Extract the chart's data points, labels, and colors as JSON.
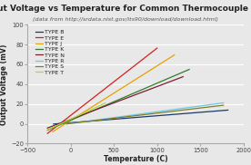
{
  "title": "Output Voltage vs Temperature for Common Thermocouple Types",
  "subtitle": "(data from http://srdata.nist.gov/its90/download/download.html)",
  "xlabel": "Temperature (C)",
  "ylabel": "Output Voltage (mV)",
  "xlim": [
    -500,
    2000
  ],
  "ylim": [
    -20,
    100
  ],
  "xticks": [
    -500,
    0,
    500,
    1000,
    1500,
    2000
  ],
  "yticks": [
    -20,
    0,
    20,
    40,
    60,
    80,
    100
  ],
  "series": [
    {
      "label": "TYPE B",
      "color": "#1a3a6e",
      "start_temp": -200,
      "end_temp": 1820,
      "start_mv": -0.3,
      "end_mv": 13.8
    },
    {
      "label": "TYPE E",
      "color": "#d42020",
      "start_temp": -270,
      "end_temp": 1000,
      "start_mv": -9.8,
      "end_mv": 76.4
    },
    {
      "label": "TYPE J",
      "color": "#e8a000",
      "start_temp": -210,
      "end_temp": 1200,
      "start_mv": -8.1,
      "end_mv": 69.5
    },
    {
      "label": "TYPE K",
      "color": "#2e7d2e",
      "start_temp": -270,
      "end_temp": 1372,
      "start_mv": -6.5,
      "end_mv": 54.9
    },
    {
      "label": "TYPE N",
      "color": "#7b1f2e",
      "start_temp": -270,
      "end_temp": 1300,
      "start_mv": -4.3,
      "end_mv": 47.5
    },
    {
      "label": "TYPE R",
      "color": "#6ec6f0",
      "start_temp": -50,
      "end_temp": 1768,
      "start_mv": -0.2,
      "end_mv": 21.1
    },
    {
      "label": "TYPE S",
      "color": "#808020",
      "start_temp": -50,
      "end_temp": 1768,
      "start_mv": -0.15,
      "end_mv": 18.7
    },
    {
      "label": "TYPE T",
      "color": "#b8d040",
      "start_temp": -270,
      "end_temp": 400,
      "start_mv": -6.2,
      "end_mv": 20.9
    }
  ],
  "background_color": "#e8e8e8",
  "plot_bg_color": "#e8e8e8",
  "grid_color": "#ffffff",
  "title_fontsize": 6.5,
  "subtitle_fontsize": 4.5,
  "axis_label_fontsize": 5.5,
  "tick_fontsize": 4.8,
  "legend_fontsize": 4.5,
  "line_width": 0.9
}
